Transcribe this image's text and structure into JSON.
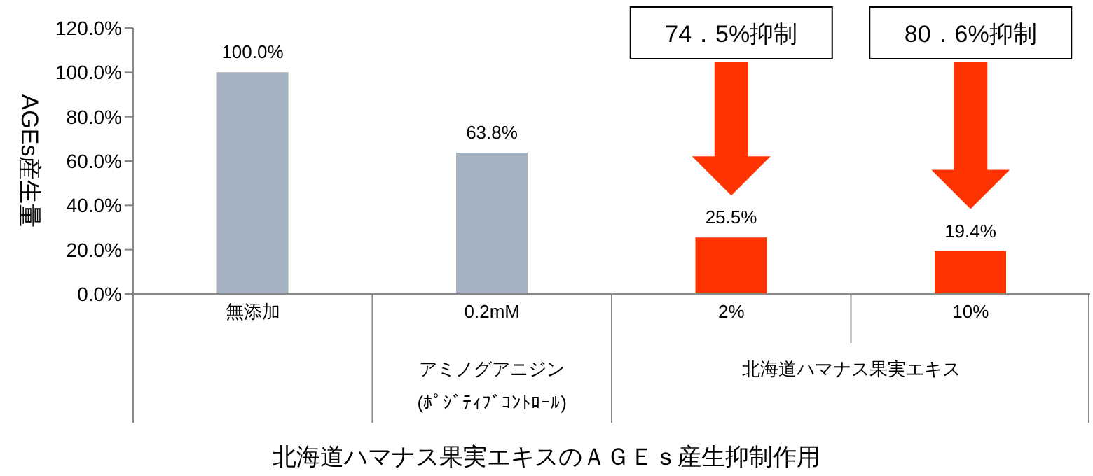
{
  "chart_data": {
    "type": "bar",
    "title": "北海道ハマナス果実エキスのＡＧＥｓ産生抑制作用",
    "ylabel": "AGEs産生量",
    "categories": [
      "無添加",
      "0.2mM",
      "2%",
      "10%"
    ],
    "values": [
      100.0,
      63.8,
      25.5,
      19.4
    ],
    "colors": [
      "#a3b1c0",
      "#a3b1c0",
      "#ff3300",
      "#ff3300"
    ],
    "value_labels": [
      "100.0%",
      "63.8%",
      "25.5%",
      "19.4%"
    ],
    "ylim": [
      0,
      120
    ],
    "yticks": [
      {
        "value": 0,
        "label": "0.0%"
      },
      {
        "value": 20,
        "label": "20.0%"
      },
      {
        "value": 40,
        "label": "40.0%"
      },
      {
        "value": 60,
        "label": "60.0%"
      },
      {
        "value": 80,
        "label": "80.0%"
      },
      {
        "value": 100,
        "label": "100.0%"
      },
      {
        "value": 120,
        "label": "120.0%"
      }
    ],
    "annotations": [
      "74．5%抑制",
      "80．6%抑制",
      "アミノグアニジン",
      "(ﾎﾟｼﾞﾃｨﾌﾞｺﾝﾄﾛｰﾙ)",
      "北海道ハマナス果実エキス"
    ],
    "grid": false,
    "legend": false
  }
}
